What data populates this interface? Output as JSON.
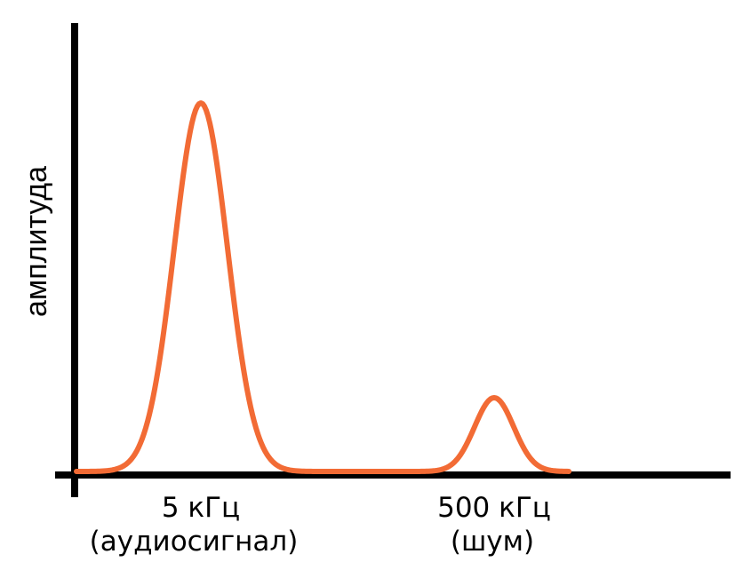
{
  "y_axis_label": "амплитуда",
  "peaks": [
    {
      "frequency_label": "5 кГц",
      "description_label": "(аудиосигнал)"
    },
    {
      "frequency_label": "500 кГц",
      "description_label": "(шум)"
    }
  ],
  "colors": {
    "curve": "#f26b35",
    "axis": "#000000"
  }
}
